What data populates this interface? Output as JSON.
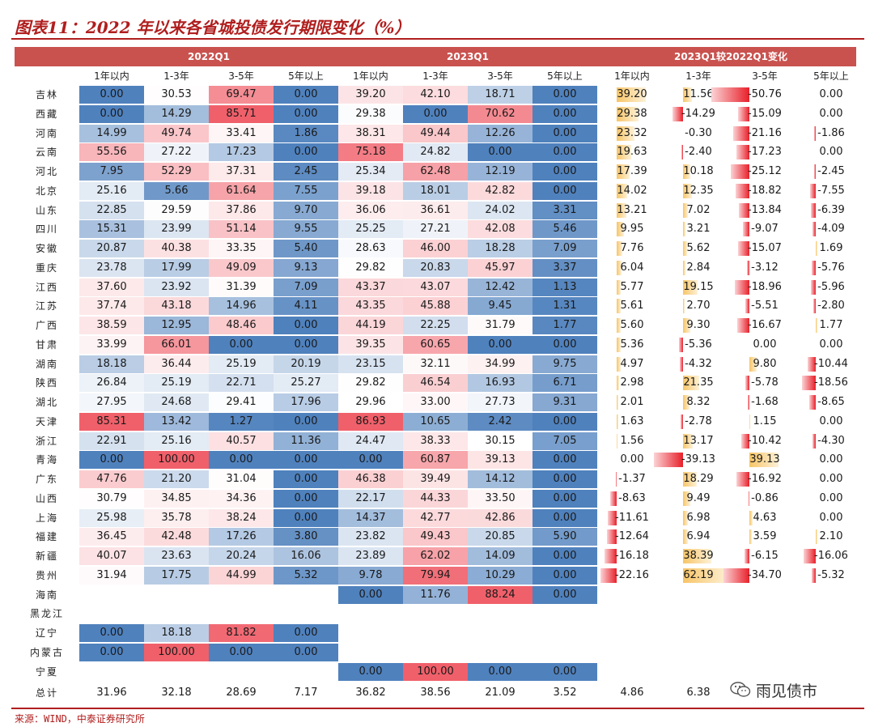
{
  "title": "图表11：2022 年以来各省城投债发行期限变化（%）",
  "source": "来源：WIND，中泰证券研究所",
  "watermark": "雨见债市",
  "groups": [
    "2022Q1",
    "2023Q1",
    "2023Q1较2022Q1变化"
  ],
  "columns": [
    "1年以内",
    "1-3年",
    "3-5年",
    "5年以上"
  ],
  "colors": {
    "title": "#b01e1e",
    "header_band": "#c9524f",
    "high_red": "#f0606a",
    "low_blue": "#4f81bd",
    "pos_bar": "#f7c567",
    "neg_bar": "#e8202a"
  },
  "rows": [
    {
      "province": "吉林",
      "y2022": [
        "0.00",
        "30.53",
        "69.47",
        "0.00"
      ],
      "y2023": [
        "39.20",
        "42.10",
        "18.71",
        "0.00"
      ],
      "diff": [
        "39.20",
        "11.56",
        "-50.76",
        "0.00"
      ]
    },
    {
      "province": "西藏",
      "y2022": [
        "0.00",
        "14.29",
        "85.71",
        "0.00"
      ],
      "y2023": [
        "29.38",
        "0.00",
        "70.62",
        "0.00"
      ],
      "diff": [
        "29.38",
        "-14.29",
        "-15.09",
        "0.00"
      ]
    },
    {
      "province": "河南",
      "y2022": [
        "14.99",
        "49.74",
        "33.41",
        "1.86"
      ],
      "y2023": [
        "38.31",
        "49.44",
        "12.26",
        "0.00"
      ],
      "diff": [
        "23.32",
        "-0.30",
        "-21.16",
        "-1.86"
      ]
    },
    {
      "province": "云南",
      "y2022": [
        "55.56",
        "27.22",
        "17.23",
        "0.00"
      ],
      "y2023": [
        "75.18",
        "24.82",
        "0.00",
        "0.00"
      ],
      "diff": [
        "19.63",
        "-2.40",
        "-17.23",
        "0.00"
      ]
    },
    {
      "province": "河北",
      "y2022": [
        "7.95",
        "52.29",
        "37.31",
        "2.45"
      ],
      "y2023": [
        "25.34",
        "62.48",
        "12.19",
        "0.00"
      ],
      "diff": [
        "17.39",
        "10.18",
        "-25.12",
        "-2.45"
      ]
    },
    {
      "province": "北京",
      "y2022": [
        "25.16",
        "5.66",
        "61.64",
        "7.55"
      ],
      "y2023": [
        "39.18",
        "18.01",
        "42.82",
        "0.00"
      ],
      "diff": [
        "14.02",
        "12.35",
        "-18.82",
        "-7.55"
      ]
    },
    {
      "province": "山东",
      "y2022": [
        "22.85",
        "29.59",
        "37.86",
        "9.70"
      ],
      "y2023": [
        "36.06",
        "36.61",
        "24.02",
        "3.31"
      ],
      "diff": [
        "13.21",
        "7.02",
        "-13.84",
        "-6.39"
      ]
    },
    {
      "province": "四川",
      "y2022": [
        "15.31",
        "23.99",
        "51.14",
        "9.55"
      ],
      "y2023": [
        "25.25",
        "27.21",
        "42.08",
        "5.46"
      ],
      "diff": [
        "9.95",
        "3.21",
        "-9.07",
        "-4.09"
      ]
    },
    {
      "province": "安徽",
      "y2022": [
        "20.87",
        "40.38",
        "33.35",
        "5.40"
      ],
      "y2023": [
        "28.63",
        "46.00",
        "18.28",
        "7.09"
      ],
      "diff": [
        "7.76",
        "5.62",
        "-15.07",
        "1.69"
      ]
    },
    {
      "province": "重庆",
      "y2022": [
        "23.78",
        "17.99",
        "49.09",
        "9.13"
      ],
      "y2023": [
        "29.82",
        "20.83",
        "45.97",
        "3.37"
      ],
      "diff": [
        "6.04",
        "2.84",
        "-3.12",
        "-5.76"
      ]
    },
    {
      "province": "江西",
      "y2022": [
        "37.60",
        "23.92",
        "31.39",
        "7.09"
      ],
      "y2023": [
        "43.37",
        "43.07",
        "12.42",
        "1.13"
      ],
      "diff": [
        "5.77",
        "19.15",
        "-18.96",
        "-5.96"
      ]
    },
    {
      "province": "江苏",
      "y2022": [
        "37.74",
        "43.18",
        "14.96",
        "4.11"
      ],
      "y2023": [
        "43.35",
        "45.88",
        "9.45",
        "1.31"
      ],
      "diff": [
        "5.61",
        "2.70",
        "-5.51",
        "-2.80"
      ]
    },
    {
      "province": "广西",
      "y2022": [
        "38.59",
        "12.95",
        "48.46",
        "0.00"
      ],
      "y2023": [
        "44.19",
        "22.25",
        "31.79",
        "1.77"
      ],
      "diff": [
        "5.60",
        "9.30",
        "-16.67",
        "1.77"
      ]
    },
    {
      "province": "甘肃",
      "y2022": [
        "33.99",
        "66.01",
        "0.00",
        "0.00"
      ],
      "y2023": [
        "39.35",
        "60.65",
        "0.00",
        "0.00"
      ],
      "diff": [
        "5.36",
        "-5.36",
        "0.00",
        "0.00"
      ]
    },
    {
      "province": "湖南",
      "y2022": [
        "18.18",
        "36.44",
        "25.19",
        "20.19"
      ],
      "y2023": [
        "23.15",
        "32.11",
        "34.99",
        "9.75"
      ],
      "diff": [
        "4.97",
        "-4.32",
        "9.80",
        "-10.44"
      ]
    },
    {
      "province": "陕西",
      "y2022": [
        "26.84",
        "25.19",
        "22.71",
        "25.27"
      ],
      "y2023": [
        "29.82",
        "46.54",
        "16.93",
        "6.71"
      ],
      "diff": [
        "2.98",
        "21.35",
        "-5.78",
        "-18.56"
      ]
    },
    {
      "province": "湖北",
      "y2022": [
        "27.95",
        "24.68",
        "29.41",
        "17.96"
      ],
      "y2023": [
        "29.96",
        "33.00",
        "27.73",
        "9.31"
      ],
      "diff": [
        "2.01",
        "8.32",
        "-1.68",
        "-8.65"
      ]
    },
    {
      "province": "天津",
      "y2022": [
        "85.31",
        "13.42",
        "1.27",
        "0.00"
      ],
      "y2023": [
        "86.93",
        "10.65",
        "2.42",
        "0.00"
      ],
      "diff": [
        "1.63",
        "-2.78",
        "1.15",
        "0.00"
      ]
    },
    {
      "province": "浙江",
      "y2022": [
        "22.91",
        "25.16",
        "40.57",
        "11.36"
      ],
      "y2023": [
        "24.47",
        "38.33",
        "30.15",
        "7.05"
      ],
      "diff": [
        "1.56",
        "13.17",
        "-10.42",
        "-4.30"
      ]
    },
    {
      "province": "青海",
      "y2022": [
        "0.00",
        "100.00",
        "0.00",
        "0.00"
      ],
      "y2023": [
        "0.00",
        "60.87",
        "39.13",
        "0.00"
      ],
      "diff": [
        "0.00",
        "-39.13",
        "39.13",
        "0.00"
      ]
    },
    {
      "province": "广东",
      "y2022": [
        "47.76",
        "21.20",
        "31.04",
        "0.00"
      ],
      "y2023": [
        "46.38",
        "39.49",
        "14.12",
        "0.00"
      ],
      "diff": [
        "-1.37",
        "18.29",
        "-16.92",
        "0.00"
      ]
    },
    {
      "province": "山西",
      "y2022": [
        "30.79",
        "34.85",
        "34.36",
        "0.00"
      ],
      "y2023": [
        "22.17",
        "44.33",
        "33.50",
        "0.00"
      ],
      "diff": [
        "-8.63",
        "9.49",
        "-0.86",
        "0.00"
      ]
    },
    {
      "province": "上海",
      "y2022": [
        "25.98",
        "35.78",
        "38.24",
        "0.00"
      ],
      "y2023": [
        "14.37",
        "42.77",
        "42.86",
        "0.00"
      ],
      "diff": [
        "-11.61",
        "6.98",
        "4.63",
        "0.00"
      ]
    },
    {
      "province": "福建",
      "y2022": [
        "36.45",
        "42.48",
        "17.26",
        "3.80"
      ],
      "y2023": [
        "23.82",
        "49.43",
        "20.85",
        "5.90"
      ],
      "diff": [
        "-12.64",
        "6.94",
        "3.59",
        "2.10"
      ]
    },
    {
      "province": "新疆",
      "y2022": [
        "40.07",
        "23.63",
        "20.24",
        "16.06"
      ],
      "y2023": [
        "23.89",
        "62.02",
        "14.09",
        "0.00"
      ],
      "diff": [
        "-16.18",
        "38.39",
        "-6.15",
        "-16.06"
      ]
    },
    {
      "province": "贵州",
      "y2022": [
        "31.94",
        "17.75",
        "44.99",
        "5.32"
      ],
      "y2023": [
        "9.78",
        "79.94",
        "10.29",
        "0.00"
      ],
      "diff": [
        "-22.16",
        "62.19",
        "-34.70",
        "-5.32"
      ]
    },
    {
      "province": "海南",
      "y2022": null,
      "y2023": [
        "0.00",
        "11.76",
        "88.24",
        "0.00"
      ],
      "diff": null
    },
    {
      "province": "黑龙江",
      "y2022": null,
      "y2023": null,
      "diff": null
    },
    {
      "province": "辽宁",
      "y2022": [
        "0.00",
        "18.18",
        "81.82",
        "0.00"
      ],
      "y2023": null,
      "diff": null
    },
    {
      "province": "内蒙古",
      "y2022": [
        "0.00",
        "100.00",
        "0.00",
        "0.00"
      ],
      "y2023": null,
      "diff": null
    },
    {
      "province": "宁夏",
      "y2022": null,
      "y2023": [
        "0.00",
        "100.00",
        "0.00",
        "0.00"
      ],
      "diff": null
    }
  ],
  "total": {
    "province": "总计",
    "y2022": [
      "31.96",
      "32.18",
      "28.69",
      "7.17"
    ],
    "y2023": [
      "36.82",
      "38.56",
      "21.09",
      "3.52"
    ],
    "diff": [
      "4.86",
      "6.38",
      "",
      ""
    ]
  }
}
